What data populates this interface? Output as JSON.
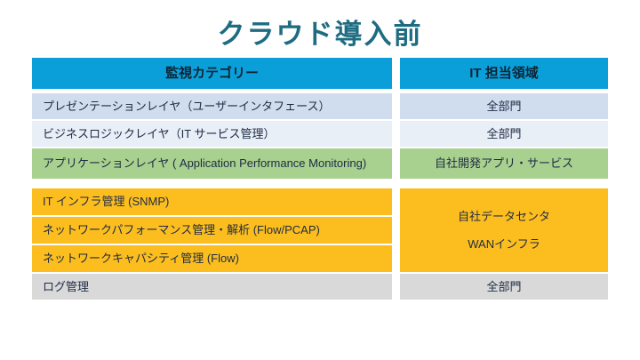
{
  "title": "クラウド導入前",
  "left_column": {
    "header": "監視カテゴリー",
    "rows": [
      "プレゼンテーションレイヤ（ユーザーインタフェース）",
      "ビジネスロジックレイヤ（IT サービス管理）",
      "アプリケーションレイヤ ( Application Performance Monitoring)",
      "IT インフラ管理 (SNMP)",
      "ネットワークパフォーマンス管理・解析 (Flow/PCAP)",
      "ネットワークキャパシティ管理 (Flow)",
      "ログ管理"
    ]
  },
  "right_column": {
    "header": "IT 担当領域",
    "rows": [
      "全部門",
      "全部門",
      "自社開発アプリ・サービス"
    ],
    "merged_cell": {
      "line1": "自社データセンタ",
      "line2": "WANインフラ"
    },
    "last_row": "全部門"
  },
  "colors": {
    "title_text": "#1E6C82",
    "header_bg": "#0B9FDA",
    "row_blue": "#CFDDEE",
    "row_blue_light": "#E9EFF7",
    "row_green": "#A8D08E",
    "row_orange": "#FCBE1F",
    "row_gray": "#D9D9D9",
    "cell_text": "#1F2B45"
  }
}
